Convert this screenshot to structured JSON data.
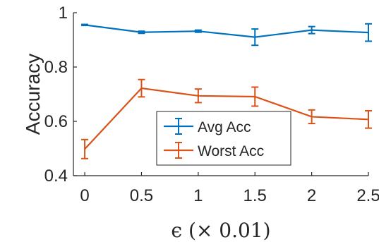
{
  "chart_data": {
    "type": "line",
    "title": "",
    "xlabel": "ϵ (× 0.01)",
    "ylabel": "Accuracy",
    "x": [
      0,
      0.5,
      1,
      1.5,
      2,
      2.5
    ],
    "x_tick_labels": [
      "0",
      "0.5",
      "1",
      "1.5",
      "2",
      "2.5"
    ],
    "y_tick_values": [
      0.4,
      0.6,
      0.8,
      1
    ],
    "y_tick_labels": [
      "0.4",
      "0.6",
      "0.8",
      "1"
    ],
    "xlim": [
      -0.1,
      2.5
    ],
    "ylim": [
      0.4,
      1.0
    ],
    "grid": false,
    "legend_position": "center",
    "series": [
      {
        "name": "Avg Acc",
        "color": "#0072BD",
        "values": [
          0.955,
          0.928,
          0.932,
          0.91,
          0.936,
          0.927
        ],
        "errors": [
          0.002,
          0.004,
          0.004,
          0.03,
          0.013,
          0.032
        ]
      },
      {
        "name": "Worst Acc",
        "color": "#D95319",
        "values": [
          0.498,
          0.722,
          0.694,
          0.691,
          0.617,
          0.607
        ],
        "errors": [
          0.035,
          0.032,
          0.025,
          0.035,
          0.025,
          0.032
        ]
      }
    ]
  }
}
